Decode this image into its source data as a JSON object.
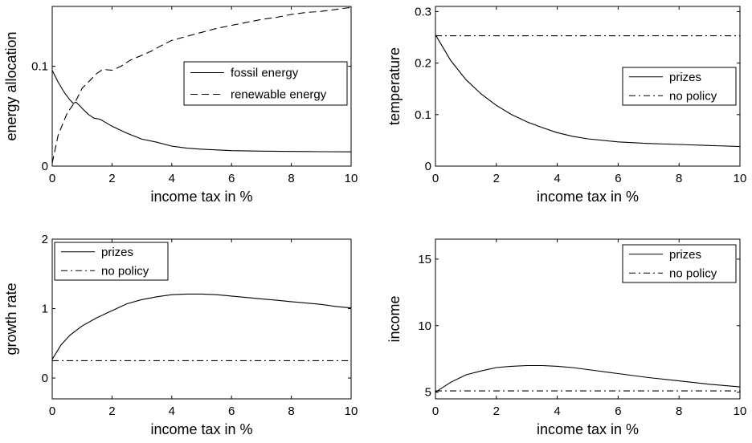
{
  "chart_data": [
    {
      "type": "line",
      "xlabel": "income tax in %",
      "ylabel": "energy allocation",
      "xlim": [
        0,
        10
      ],
      "ylim": [
        0,
        0.16
      ],
      "xticks": [
        0,
        2,
        4,
        6,
        8,
        10
      ],
      "yticks": [
        0,
        0.1
      ],
      "ytick_labels": [
        "0",
        "0.1"
      ],
      "grid": false,
      "legend_position": "center-right",
      "series": [
        {
          "name": "fossil energy",
          "style": "solid",
          "x": [
            0,
            0.2,
            0.4,
            0.6,
            0.7,
            0.8,
            1.0,
            1.2,
            1.4,
            1.6,
            2.0,
            2.5,
            3.0,
            3.5,
            4.0,
            4.5,
            5.0,
            6.0,
            7.0,
            8.0,
            9.0,
            10.0
          ],
          "y": [
            0.096,
            0.084,
            0.074,
            0.066,
            0.063,
            0.064,
            0.058,
            0.052,
            0.048,
            0.047,
            0.04,
            0.033,
            0.027,
            0.024,
            0.02,
            0.018,
            0.017,
            0.0155,
            0.015,
            0.0147,
            0.0145,
            0.0143
          ]
        },
        {
          "name": "renewable energy",
          "style": "dashed",
          "x": [
            0,
            0.2,
            0.5,
            0.8,
            1.0,
            1.3,
            1.5,
            1.7,
            2.0,
            2.3,
            2.6,
            3.0,
            3.3,
            3.6,
            4.0,
            4.5,
            5.0,
            5.5,
            6.0,
            6.5,
            7.0,
            7.5,
            8.0,
            8.5,
            9.0,
            9.5,
            10.0
          ],
          "y": [
            0.003,
            0.031,
            0.053,
            0.066,
            0.078,
            0.087,
            0.093,
            0.097,
            0.096,
            0.1,
            0.106,
            0.111,
            0.115,
            0.12,
            0.126,
            0.13,
            0.134,
            0.138,
            0.141,
            0.144,
            0.147,
            0.149,
            0.152,
            0.154,
            0.155,
            0.157,
            0.159
          ]
        }
      ]
    },
    {
      "type": "line",
      "xlabel": "income tax in %",
      "ylabel": "temperature",
      "xlim": [
        0,
        10
      ],
      "ylim": [
        0,
        0.31
      ],
      "xticks": [
        0,
        2,
        4,
        6,
        8,
        10
      ],
      "yticks": [
        0,
        0.1,
        0.2,
        0.3
      ],
      "ytick_labels": [
        "0",
        "0.1",
        "0.2",
        "0.3"
      ],
      "grid": false,
      "legend_position": "center-right",
      "series": [
        {
          "name": "prizes",
          "style": "solid",
          "x": [
            0,
            0.5,
            1.0,
            1.5,
            2.0,
            2.5,
            3.0,
            3.5,
            4.0,
            4.5,
            5.0,
            6.0,
            7.0,
            8.0,
            9.0,
            10.0
          ],
          "y": [
            0.255,
            0.205,
            0.168,
            0.14,
            0.118,
            0.1,
            0.086,
            0.075,
            0.065,
            0.058,
            0.053,
            0.047,
            0.044,
            0.042,
            0.04,
            0.038
          ]
        },
        {
          "name": "no policy",
          "style": "dashdot",
          "x": [
            0,
            10
          ],
          "y": [
            0.253,
            0.253
          ]
        }
      ]
    },
    {
      "type": "line",
      "xlabel": "income tax in %",
      "ylabel": "growth rate",
      "xlim": [
        0,
        10
      ],
      "ylim": [
        -0.3,
        2
      ],
      "xticks": [
        0,
        2,
        4,
        6,
        8,
        10
      ],
      "yticks": [
        0,
        1,
        2
      ],
      "ytick_labels": [
        "0",
        "1",
        "2"
      ],
      "grid": false,
      "legend_position": "top-left",
      "series": [
        {
          "name": "prizes",
          "style": "solid",
          "x": [
            0,
            0.3,
            0.6,
            1.0,
            1.5,
            2.0,
            2.5,
            3.0,
            3.5,
            4.0,
            4.5,
            5.0,
            5.5,
            6.0,
            6.5,
            7.0,
            7.5,
            8.0,
            8.5,
            9.0,
            9.5,
            10.0
          ],
          "y": [
            0.27,
            0.48,
            0.62,
            0.75,
            0.87,
            0.97,
            1.07,
            1.13,
            1.17,
            1.2,
            1.21,
            1.21,
            1.2,
            1.18,
            1.16,
            1.14,
            1.12,
            1.1,
            1.08,
            1.06,
            1.03,
            1.01
          ]
        },
        {
          "name": "no policy",
          "style": "dashdot",
          "x": [
            0,
            10
          ],
          "y": [
            0.25,
            0.25
          ]
        }
      ]
    },
    {
      "type": "line",
      "xlabel": "income tax in %",
      "ylabel": "income",
      "xlim": [
        0,
        10
      ],
      "ylim": [
        4.5,
        16.5
      ],
      "xticks": [
        0,
        2,
        4,
        6,
        8,
        10
      ],
      "yticks": [
        5,
        10,
        15
      ],
      "ytick_labels": [
        "5",
        "10",
        "15"
      ],
      "grid": false,
      "legend_position": "top-right",
      "series": [
        {
          "name": "prizes",
          "style": "solid",
          "x": [
            0,
            0.5,
            1.0,
            1.5,
            2.0,
            2.5,
            3.0,
            3.5,
            4.0,
            4.5,
            5.0,
            6.0,
            7.0,
            8.0,
            9.0,
            10.0
          ],
          "y": [
            5.0,
            5.75,
            6.3,
            6.6,
            6.85,
            6.95,
            7.0,
            7.0,
            6.95,
            6.85,
            6.7,
            6.4,
            6.1,
            5.85,
            5.6,
            5.4
          ]
        },
        {
          "name": "no policy",
          "style": "dashdot",
          "x": [
            0,
            10
          ],
          "y": [
            5.1,
            5.1
          ]
        }
      ]
    }
  ]
}
